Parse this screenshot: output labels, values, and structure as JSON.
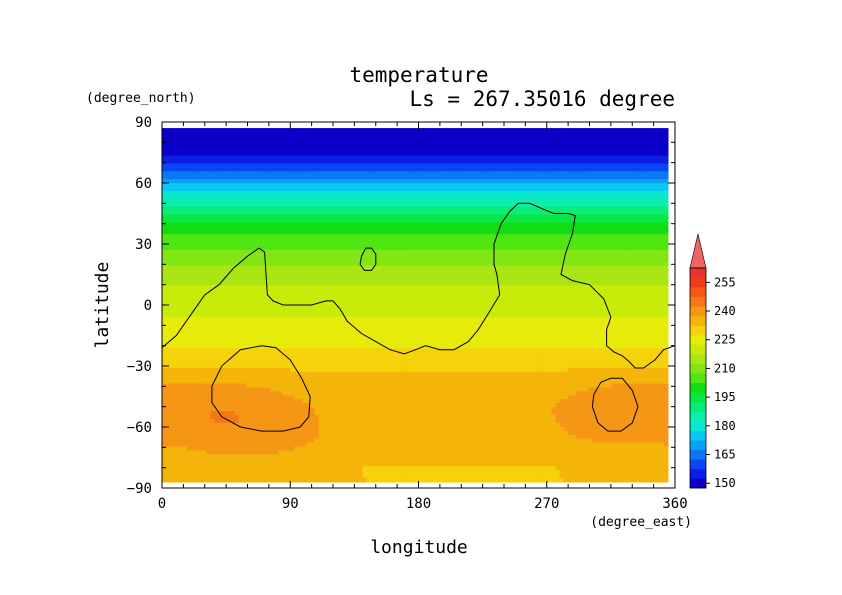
{
  "chart_data": {
    "type": "heatmap",
    "title": "temperature",
    "subtitle": "Ls = 267.35016 degree",
    "xlabel": "longitude",
    "ylabel": "latitude",
    "xunit": "(degree_east)",
    "yunit": "(degree_north)",
    "xlim": [
      0,
      360
    ],
    "ylim": [
      -90,
      90
    ],
    "xticks": [
      0,
      90,
      180,
      270,
      360
    ],
    "yticks": [
      -90,
      -60,
      -30,
      0,
      30,
      60,
      90
    ],
    "data_lat_range": [
      -87,
      87
    ],
    "profile": {
      "lat": [
        -87,
        -80,
        -75,
        -66,
        -58,
        -50,
        -40,
        -30,
        -22,
        -18,
        -10,
        0,
        8,
        18,
        28,
        36,
        42,
        48,
        54,
        60,
        66,
        72,
        78,
        87
      ],
      "temp": [
        230,
        230,
        232,
        234,
        234,
        234,
        233,
        229,
        226,
        222,
        221,
        219,
        216,
        211,
        205,
        199,
        193,
        186,
        178,
        169,
        160,
        152,
        147,
        146
      ]
    },
    "warm_spots": [
      {
        "lon": 45,
        "lat": -52,
        "dT": 5
      },
      {
        "lon": 330,
        "lat": -52,
        "dT": 5
      },
      {
        "lon": 60,
        "lat": -68,
        "dT": 3
      },
      {
        "lon": 200,
        "lat": -62,
        "dT": -2
      }
    ],
    "contour_levels": [
      150,
      165,
      180,
      195,
      210,
      225,
      240,
      255
    ],
    "colorbar": {
      "levels": [
        145,
        150,
        155,
        160,
        165,
        170,
        175,
        180,
        185,
        190,
        195,
        200,
        205,
        210,
        215,
        220,
        225,
        230,
        235,
        240,
        245,
        250,
        255,
        260
      ],
      "colors": [
        "#0a00c8",
        "#0a1ee6",
        "#0a46f5",
        "#0a78f5",
        "#0aa0f5",
        "#0ac8f0",
        "#0ae6d2",
        "#0af0aa",
        "#0aeb78",
        "#0ae646",
        "#14dc14",
        "#50e614",
        "#82e614",
        "#aae614",
        "#c8eb0a",
        "#e6eb0a",
        "#f5d20a",
        "#f5b40a",
        "#f59614",
        "#f57814",
        "#f55a14",
        "#f03c14",
        "#eb3232",
        "#f06464"
      ],
      "tick_labels": [
        "150",
        "165",
        "180",
        "195",
        "210",
        "225",
        "240",
        "255"
      ]
    },
    "topography_contours": [
      {
        "name": "continent-outline",
        "points": [
          [
            0,
            -21
          ],
          [
            10,
            -15
          ],
          [
            20,
            -5
          ],
          [
            30,
            5
          ],
          [
            40,
            10
          ],
          [
            50,
            18
          ],
          [
            60,
            24
          ],
          [
            68,
            28
          ],
          [
            72,
            26
          ],
          [
            73,
            15
          ],
          [
            74,
            5
          ],
          [
            78,
            2
          ],
          [
            85,
            0
          ],
          [
            95,
            0
          ],
          [
            105,
            0
          ],
          [
            115,
            2
          ],
          [
            120,
            2
          ],
          [
            125,
            -2
          ],
          [
            130,
            -8
          ],
          [
            140,
            -14
          ],
          [
            150,
            -18
          ],
          [
            160,
            -22
          ],
          [
            170,
            -24
          ],
          [
            178,
            -22
          ],
          [
            185,
            -20
          ],
          [
            195,
            -22
          ],
          [
            205,
            -22
          ],
          [
            215,
            -18
          ],
          [
            222,
            -12
          ],
          [
            230,
            -3
          ],
          [
            237,
            5
          ],
          [
            235,
            15
          ],
          [
            233,
            20
          ],
          [
            233,
            30
          ],
          [
            238,
            40
          ],
          [
            244,
            46
          ],
          [
            250,
            50
          ],
          [
            258,
            50
          ],
          [
            268,
            47
          ],
          [
            275,
            45
          ],
          [
            285,
            45
          ],
          [
            290,
            44
          ],
          [
            288,
            35
          ],
          [
            283,
            25
          ],
          [
            280,
            15
          ],
          [
            288,
            12
          ],
          [
            300,
            10
          ],
          [
            310,
            3
          ],
          [
            315,
            -6
          ],
          [
            312,
            -12
          ],
          [
            312,
            -20
          ],
          [
            317,
            -23
          ],
          [
            323,
            -25
          ],
          [
            328,
            -28
          ],
          [
            332,
            -31
          ],
          [
            338,
            -31
          ],
          [
            346,
            -27
          ],
          [
            352,
            -22
          ],
          [
            360,
            -20
          ]
        ]
      },
      {
        "name": "small-crater",
        "points": [
          [
            140,
            24
          ],
          [
            143,
            28
          ],
          [
            147,
            28
          ],
          [
            150,
            25
          ],
          [
            150,
            20
          ],
          [
            147,
            17
          ],
          [
            142,
            17
          ],
          [
            139,
            20
          ],
          [
            140,
            24
          ]
        ]
      },
      {
        "name": "west-basin",
        "points": [
          [
            35,
            -40
          ],
          [
            42,
            -30
          ],
          [
            55,
            -22
          ],
          [
            70,
            -20
          ],
          [
            80,
            -21
          ],
          [
            90,
            -27
          ],
          [
            98,
            -36
          ],
          [
            104,
            -45
          ],
          [
            103,
            -55
          ],
          [
            97,
            -60
          ],
          [
            85,
            -62
          ],
          [
            70,
            -62
          ],
          [
            55,
            -60
          ],
          [
            42,
            -55
          ],
          [
            35,
            -48
          ],
          [
            35,
            -40
          ]
        ]
      },
      {
        "name": "east-basin",
        "points": [
          [
            303,
            -44
          ],
          [
            308,
            -38
          ],
          [
            315,
            -36
          ],
          [
            323,
            -36
          ],
          [
            330,
            -42
          ],
          [
            334,
            -50
          ],
          [
            330,
            -58
          ],
          [
            322,
            -62
          ],
          [
            313,
            -62
          ],
          [
            306,
            -58
          ],
          [
            302,
            -50
          ],
          [
            303,
            -44
          ]
        ]
      }
    ]
  }
}
